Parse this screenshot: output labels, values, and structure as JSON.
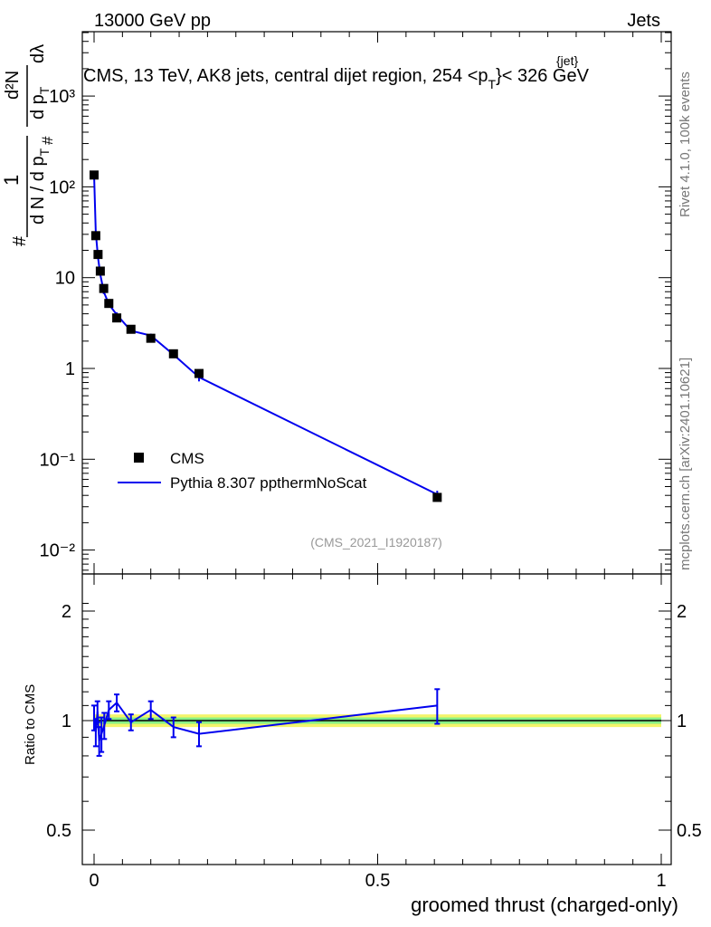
{
  "header": {
    "beam": "13000 GeV pp",
    "category": "Jets",
    "plot_title_part1": "CMS, 13 TeV, AK8 jets, central dijet region, 254 <p",
    "plot_title_sub": "T",
    "plot_title_sup": "{jet}",
    "plot_title_part2": "}< 326 GeV"
  },
  "side_labels": {
    "rivet": "Rivet 4.1.0,  100k events",
    "mcplots": "mcplots.cern.ch [arXiv:2401.10621]"
  },
  "y_axis_label": {
    "hash": "#",
    "one": "1",
    "den": "d N / d p",
    "den_sub": "T",
    "num_hash": "#",
    "num": "d²N",
    "num_den": "d p",
    "num_den_sub": "T",
    "dlambda": "dλ"
  },
  "ratio_y_label": "Ratio to CMS",
  "x_axis_label": "groomed thrust (charged-only)",
  "analysis_tag": "(CMS_2021_I1920187)",
  "legend": {
    "data_label": "CMS",
    "mc_label": "Pythia 8.307 ppthermNoScat"
  },
  "colors": {
    "mc": "#0000ee",
    "data": "#000000",
    "band_inner": "#86f086",
    "band_outer": "#f4f46a"
  },
  "chart_data": [
    {
      "type": "scatter",
      "panel": "main",
      "yscale": "log",
      "xlim": [
        -0.02,
        1.0
      ],
      "ylim": [
        0.005,
        5000
      ],
      "x_ticks": [
        "0",
        "0.5",
        "1"
      ],
      "y_ticks": [
        "10⁻²",
        "10⁻¹",
        "1",
        "10",
        "10²",
        "10³"
      ],
      "series": [
        {
          "name": "CMS",
          "x": [
            0.0,
            0.003,
            0.007,
            0.011,
            0.017,
            0.026,
            0.04,
            0.065,
            0.1,
            0.14,
            0.185,
            0.605
          ],
          "y": [
            135,
            29,
            18,
            11.8,
            7.6,
            5.2,
            3.6,
            2.7,
            2.15,
            1.45,
            0.88,
            0.038
          ]
        },
        {
          "name": "Pythia 8.307 ppthermNoScat",
          "x": [
            0.0,
            0.003,
            0.007,
            0.011,
            0.017,
            0.026,
            0.04,
            0.065,
            0.1,
            0.14,
            0.185,
            0.605
          ],
          "y": [
            137,
            31,
            16.5,
            10.8,
            7.0,
            5.1,
            3.9,
            2.6,
            2.3,
            1.42,
            0.8,
            0.041
          ],
          "yerr": [
            0,
            0,
            0,
            0,
            0.4,
            0.3,
            0.25,
            0.15,
            0.12,
            0.1,
            0.08,
            0.004
          ]
        }
      ]
    },
    {
      "type": "line",
      "panel": "ratio",
      "xlabel": "groomed thrust (charged-only)",
      "ylabel": "Ratio to CMS",
      "xlim": [
        -0.02,
        1.0
      ],
      "ylim": [
        0.4,
        2.3
      ],
      "x_ticks": [
        "0",
        "0.5",
        "1"
      ],
      "y_ticks": [
        "0.5",
        "1",
        "2"
      ],
      "band": {
        "x": [
          0.0,
          1.0
        ],
        "inner": [
          0.98,
          1.02
        ],
        "outer": [
          0.96,
          1.04
        ]
      },
      "series": [
        {
          "name": "Pythia 8.307 ppthermNoScat / CMS",
          "x": [
            0.0,
            0.003,
            0.006,
            0.009,
            0.013,
            0.018,
            0.026,
            0.04,
            0.065,
            0.1,
            0.14,
            0.185,
            0.605
          ],
          "y": [
            1.02,
            0.93,
            1.06,
            0.88,
            0.92,
            0.97,
            1.07,
            1.12,
            0.99,
            1.07,
            0.96,
            0.92,
            1.1
          ],
          "yerr": [
            0.08,
            0.08,
            0.07,
            0.08,
            0.1,
            0.08,
            0.06,
            0.06,
            0.05,
            0.06,
            0.06,
            0.07,
            0.12
          ]
        }
      ]
    }
  ]
}
